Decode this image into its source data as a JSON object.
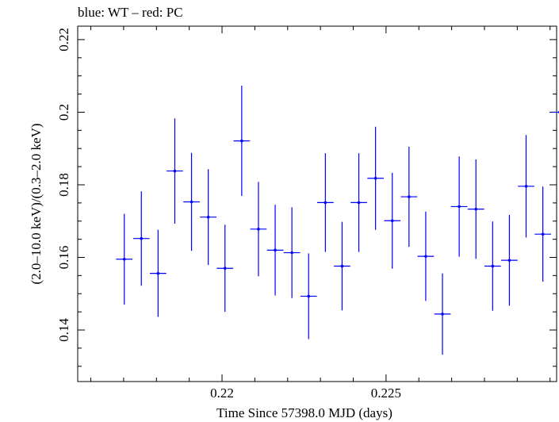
{
  "chart_data": {
    "type": "scatter",
    "title": "blue: WT – red: PC",
    "xlabel": "Time Since 57398.0 MJD (days)",
    "ylabel": "(2.0–10.0 keV)/(0.3–2.0 keV)",
    "xlim": [
      0.2156,
      0.2302
    ],
    "ylim": [
      0.1258,
      0.2237
    ],
    "xticks": [
      0.22,
      0.225
    ],
    "xtick_labels": [
      "0.22",
      "0.225"
    ],
    "yticks": [
      0.14,
      0.16,
      0.18,
      0.2,
      0.22
    ],
    "ytick_labels": [
      "0.14",
      "0.16",
      "0.18",
      "0.2",
      "0.22"
    ],
    "grid": false,
    "series": [
      {
        "color": "#0000ff",
        "points": [
          {
            "x": 0.21702,
            "y": 0.1595,
            "xerr": 0.00025,
            "yerr": 0.0125
          },
          {
            "x": 0.21754,
            "y": 0.1652,
            "xerr": 0.00025,
            "yerr": 0.013
          },
          {
            "x": 0.21805,
            "y": 0.1556,
            "xerr": 0.00025,
            "yerr": 0.012
          },
          {
            "x": 0.21856,
            "y": 0.1838,
            "xerr": 0.00025,
            "yerr": 0.0145
          },
          {
            "x": 0.21907,
            "y": 0.1753,
            "xerr": 0.00025,
            "yerr": 0.0135
          },
          {
            "x": 0.21958,
            "y": 0.1711,
            "xerr": 0.00025,
            "yerr": 0.0132
          },
          {
            "x": 0.22009,
            "y": 0.157,
            "xerr": 0.00025,
            "yerr": 0.012
          },
          {
            "x": 0.2206,
            "y": 0.1921,
            "xerr": 0.00025,
            "yerr": 0.0152
          },
          {
            "x": 0.22111,
            "y": 0.1678,
            "xerr": 0.00025,
            "yerr": 0.013
          },
          {
            "x": 0.22162,
            "y": 0.162,
            "xerr": 0.00025,
            "yerr": 0.0125
          },
          {
            "x": 0.22213,
            "y": 0.1613,
            "xerr": 0.00025,
            "yerr": 0.0125
          },
          {
            "x": 0.22264,
            "y": 0.1493,
            "xerr": 0.00025,
            "yerr": 0.0118
          },
          {
            "x": 0.22315,
            "y": 0.1751,
            "xerr": 0.00025,
            "yerr": 0.0136
          },
          {
            "x": 0.22366,
            "y": 0.1576,
            "xerr": 0.00025,
            "yerr": 0.0122
          },
          {
            "x": 0.22417,
            "y": 0.1751,
            "xerr": 0.00025,
            "yerr": 0.0136
          },
          {
            "x": 0.22468,
            "y": 0.1818,
            "xerr": 0.00025,
            "yerr": 0.0142
          },
          {
            "x": 0.22519,
            "y": 0.1701,
            "xerr": 0.00025,
            "yerr": 0.0132
          },
          {
            "x": 0.2257,
            "y": 0.1767,
            "xerr": 0.00025,
            "yerr": 0.0138
          },
          {
            "x": 0.22621,
            "y": 0.1603,
            "xerr": 0.00025,
            "yerr": 0.0123
          },
          {
            "x": 0.22672,
            "y": 0.1444,
            "xerr": 0.00025,
            "yerr": 0.0112
          },
          {
            "x": 0.22723,
            "y": 0.174,
            "xerr": 0.00025,
            "yerr": 0.0138
          },
          {
            "x": 0.22774,
            "y": 0.1733,
            "xerr": 0.00025,
            "yerr": 0.0137
          },
          {
            "x": 0.22825,
            "y": 0.1576,
            "xerr": 0.00025,
            "yerr": 0.0123
          },
          {
            "x": 0.22876,
            "y": 0.1592,
            "xerr": 0.00025,
            "yerr": 0.0125
          },
          {
            "x": 0.22927,
            "y": 0.1796,
            "xerr": 0.00025,
            "yerr": 0.0141
          },
          {
            "x": 0.22978,
            "y": 0.1664,
            "xerr": 0.00025,
            "yerr": 0.0131
          },
          {
            "x": 0.23029,
            "y": 0.2,
            "xerr": 0.00025,
            "yerr": 0.0156
          }
        ]
      }
    ]
  }
}
